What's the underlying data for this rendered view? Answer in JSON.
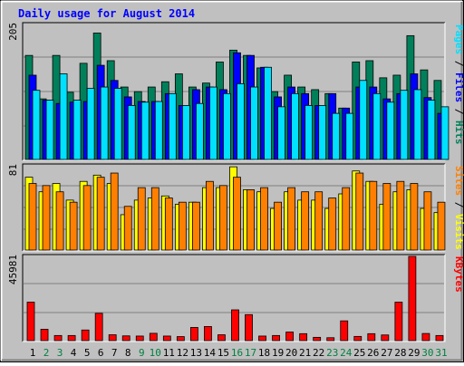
{
  "chart_data": {
    "type": "bar",
    "title": "Daily usage for August 2014",
    "categories": [
      "1",
      "2",
      "3",
      "4",
      "5",
      "6",
      "7",
      "8",
      "9",
      "10",
      "11",
      "12",
      "13",
      "14",
      "15",
      "16",
      "17",
      "18",
      "19",
      "20",
      "21",
      "22",
      "23",
      "24",
      "25",
      "26",
      "27",
      "28",
      "29",
      "30",
      "31"
    ],
    "weekend_days": [
      "2",
      "3",
      "9",
      "10",
      "16",
      "17",
      "23",
      "24",
      "30",
      "31"
    ],
    "colors": {
      "title": "#0000ff",
      "hits": "#00805a",
      "files": "#0000ff",
      "pages": "#00e0ff",
      "visits": "#ffff00",
      "sites": "#ff8000",
      "kbytes": "#ff0000",
      "weekday_label": "#000000",
      "weekend_label": "#008040",
      "background": "#c0c0c0",
      "frame": "#ffffff"
    },
    "panels": [
      {
        "id": "hits-files-pages",
        "ymax_label": "205",
        "ylim": [
          0,
          205
        ],
        "legend": [
          {
            "text": "Pages",
            "color": "#00e0ff"
          },
          {
            "text": "Files",
            "color": "#0000ff"
          },
          {
            "text": "Hits",
            "color": "#00805a"
          }
        ],
        "series": [
          {
            "name": "Hits",
            "color": "#00805a",
            "values": [
              158,
              92,
              158,
              102,
              146,
              192,
              150,
              110,
              103,
              110,
              118,
              130,
              110,
              116,
              148,
              166,
              158,
              139,
              103,
              128,
              110,
              106,
              100,
              78,
              148,
              150,
              124,
              128,
              188,
              136,
              120
            ]
          },
          {
            "name": "Files",
            "color": "#0000ff",
            "values": [
              128,
              90,
              85,
              87,
              88,
              143,
              120,
              95,
              88,
              88,
              100,
              82,
              106,
              110,
              106,
              162,
              158,
              140,
              95,
              110,
              100,
              82,
              100,
              78,
              110,
              110,
              92,
              100,
              130,
              94,
              70
            ]
          },
          {
            "name": "Pages",
            "color": "#00e0ff",
            "values": [
              105,
              90,
              130,
              90,
              108,
              110,
              108,
              82,
              87,
              88,
              100,
              82,
              85,
              110,
              100,
              115,
              110,
              140,
              80,
              100,
              82,
              82,
              70,
              70,
              120,
              100,
              87,
              105,
              106,
              90,
              80
            ]
          }
        ]
      },
      {
        "id": "visits-sites",
        "ymax_label": "81",
        "ylim": [
          0,
          81
        ],
        "legend": [
          {
            "text": "Sites",
            "color": "#ff8000"
          },
          {
            "text": "Visits",
            "color": "#ffff00"
          }
        ],
        "series": [
          {
            "name": "Visits",
            "color": "#ffff00",
            "values": [
              70,
              56,
              64,
              48,
              66,
              72,
              64,
              34,
              48,
              50,
              52,
              44,
              46,
              60,
              60,
              80,
              58,
              56,
              40,
              56,
              48,
              48,
              40,
              54,
              76,
              66,
              44,
              56,
              58,
              40,
              36
            ]
          },
          {
            "name": "Sites",
            "color": "#ff8000",
            "values": [
              64,
              62,
              56,
              46,
              62,
              70,
              74,
              42,
              60,
              60,
              50,
              46,
              46,
              66,
              62,
              70,
              58,
              60,
              46,
              60,
              56,
              56,
              50,
              60,
              74,
              66,
              64,
              66,
              64,
              56,
              46
            ]
          }
        ]
      },
      {
        "id": "kbytes",
        "ymax_label": "45981",
        "ylim": [
          0,
          45981
        ],
        "legend": [
          {
            "text": "KBytes",
            "color": "#ff0000"
          }
        ],
        "series": [
          {
            "name": "KBytes",
            "color": "#ff0000",
            "values": [
              21000,
              6200,
              2800,
              2800,
              5800,
              14900,
              3200,
              2600,
              2500,
              4000,
              2500,
              2200,
              7200,
              7700,
              3200,
              16800,
              14200,
              2500,
              2800,
              4700,
              3800,
              1800,
              1600,
              10800,
              2300,
              3800,
              3100,
              21000,
              45981,
              3900,
              2800
            ]
          }
        ]
      }
    ]
  }
}
